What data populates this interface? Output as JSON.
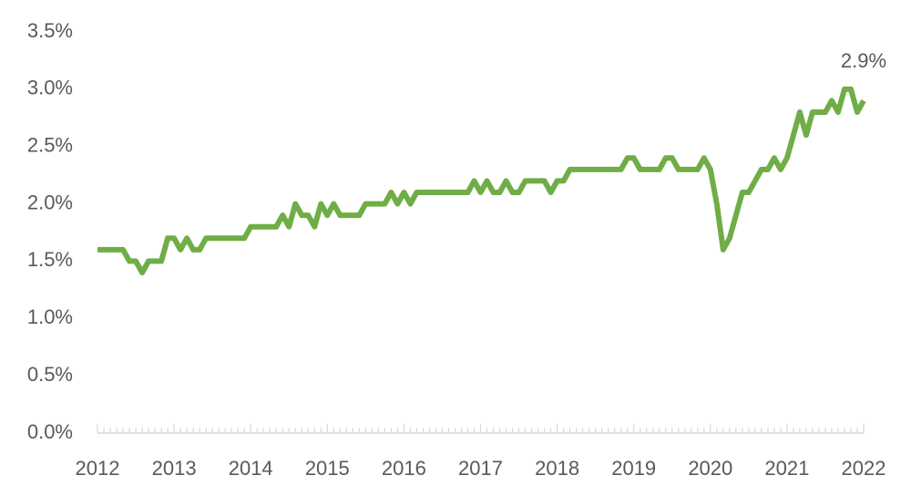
{
  "chart_data": {
    "type": "line",
    "categories": [
      "2012",
      null,
      null,
      null,
      null,
      null,
      null,
      null,
      null,
      null,
      null,
      null,
      "2013",
      null,
      null,
      null,
      null,
      null,
      null,
      null,
      null,
      null,
      null,
      null,
      "2014",
      null,
      null,
      null,
      null,
      null,
      null,
      null,
      null,
      null,
      null,
      null,
      "2015",
      null,
      null,
      null,
      null,
      null,
      null,
      null,
      null,
      null,
      null,
      null,
      "2016",
      null,
      null,
      null,
      null,
      null,
      null,
      null,
      null,
      null,
      null,
      null,
      "2017",
      null,
      null,
      null,
      null,
      null,
      null,
      null,
      null,
      null,
      null,
      null,
      "2018",
      null,
      null,
      null,
      null,
      null,
      null,
      null,
      null,
      null,
      null,
      null,
      "2019",
      null,
      null,
      null,
      null,
      null,
      null,
      null,
      null,
      null,
      null,
      null,
      "2020",
      null,
      null,
      null,
      null,
      null,
      null,
      null,
      null,
      null,
      null,
      null,
      "2021",
      null,
      null,
      null,
      null,
      null,
      null,
      null,
      null,
      null,
      null,
      null,
      "2022"
    ],
    "series": [
      {
        "color": "#70ad47",
        "values": [
          1.6,
          1.6,
          1.6,
          1.6,
          1.6,
          1.5,
          1.5,
          1.4,
          1.5,
          1.5,
          1.5,
          1.7,
          1.7,
          1.6,
          1.7,
          1.6,
          1.6,
          1.7,
          1.7,
          1.7,
          1.7,
          1.7,
          1.7,
          1.7,
          1.8,
          1.8,
          1.8,
          1.8,
          1.8,
          1.9,
          1.8,
          2.0,
          1.9,
          1.9,
          1.8,
          2.0,
          1.9,
          2.0,
          1.9,
          1.9,
          1.9,
          1.9,
          2.0,
          2.0,
          2.0,
          2.0,
          2.1,
          2.0,
          2.1,
          2.0,
          2.1,
          2.1,
          2.1,
          2.1,
          2.1,
          2.1,
          2.1,
          2.1,
          2.1,
          2.2,
          2.1,
          2.2,
          2.1,
          2.1,
          2.2,
          2.1,
          2.1,
          2.2,
          2.2,
          2.2,
          2.2,
          2.1,
          2.2,
          2.2,
          2.3,
          2.3,
          2.3,
          2.3,
          2.3,
          2.3,
          2.3,
          2.3,
          2.3,
          2.4,
          2.4,
          2.3,
          2.3,
          2.3,
          2.3,
          2.4,
          2.4,
          2.3,
          2.3,
          2.3,
          2.3,
          2.4,
          2.3,
          2.0,
          1.6,
          1.7,
          1.9,
          2.1,
          2.1,
          2.2,
          2.3,
          2.3,
          2.4,
          2.3,
          2.4,
          2.6,
          2.8,
          2.6,
          2.8,
          2.8,
          2.8,
          2.9,
          2.8,
          3.0,
          3.0,
          2.8,
          2.9
        ],
        "value_labels": [
          null,
          null,
          null,
          null,
          null,
          null,
          null,
          null,
          null,
          null,
          null,
          null,
          null,
          null,
          null,
          null,
          null,
          null,
          null,
          null,
          null,
          null,
          null,
          null,
          null,
          null,
          null,
          null,
          null,
          null,
          null,
          null,
          null,
          null,
          null,
          null,
          null,
          null,
          null,
          null,
          null,
          null,
          null,
          null,
          null,
          null,
          null,
          null,
          null,
          null,
          null,
          null,
          null,
          null,
          null,
          null,
          null,
          null,
          null,
          null,
          null,
          null,
          null,
          null,
          null,
          null,
          null,
          null,
          null,
          null,
          null,
          null,
          null,
          null,
          null,
          null,
          null,
          null,
          null,
          null,
          null,
          null,
          null,
          null,
          null,
          null,
          null,
          null,
          null,
          null,
          null,
          null,
          null,
          null,
          null,
          null,
          null,
          null,
          null,
          null,
          null,
          null,
          null,
          null,
          null,
          null,
          null,
          null,
          null,
          null,
          null,
          null,
          null,
          null,
          null,
          null,
          null,
          null,
          null,
          null,
          "2.9%"
        ]
      }
    ],
    "ylim": [
      0,
      3.5
    ],
    "yticks": [
      {
        "value": 0,
        "label": "0.0%"
      },
      {
        "value": 0.5,
        "label": "0.5%"
      },
      {
        "value": 1,
        "label": "1.0%"
      },
      {
        "value": 1.5,
        "label": "1.5%"
      },
      {
        "value": 2,
        "label": "2.0%"
      },
      {
        "value": 2.5,
        "label": "2.5%"
      },
      {
        "value": 3,
        "label": "3.0%"
      },
      {
        "value": 3.5,
        "label": "3.5%"
      }
    ],
    "grid": false
  }
}
